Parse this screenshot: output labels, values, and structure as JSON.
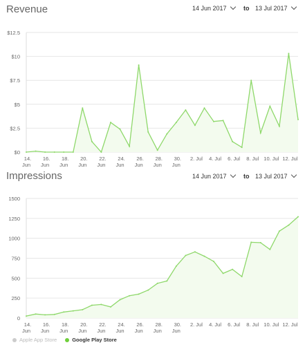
{
  "revenue": {
    "title": "Revenue",
    "from_date": "14 Jun 2017",
    "to_label": "to",
    "to_date": "13 Jul 2017"
  },
  "impressions": {
    "title": "Impressions",
    "from_date": "14 Jun 2017",
    "to_label": "to",
    "to_date": "13 Jul 2017"
  },
  "legend": [
    {
      "label": "Apple App Store",
      "color": "#cccccc",
      "active": false
    },
    {
      "label": "Google Play Store",
      "color": "#6fcf3a",
      "active": true
    }
  ],
  "colors": {
    "line": "#8ed86a",
    "fill": "#f3fbee",
    "grid": "#e6e6e6"
  },
  "chart_data": [
    {
      "type": "area",
      "title": "Revenue",
      "x": [
        "14 Jun",
        "15 Jun",
        "16 Jun",
        "17 Jun",
        "18 Jun",
        "19 Jun",
        "20 Jun",
        "21 Jun",
        "22 Jun",
        "23 Jun",
        "24 Jun",
        "25 Jun",
        "26 Jun",
        "27 Jun",
        "28 Jun",
        "29 Jun",
        "30 Jun",
        "1 Jul",
        "2 Jul",
        "3 Jul",
        "4 Jul",
        "5 Jul",
        "6 Jul",
        "7 Jul",
        "8 Jul",
        "9 Jul",
        "10 Jul",
        "11 Jul",
        "12 Jul",
        "13 Jul"
      ],
      "x_tick_labels": [
        [
          "14.",
          "Jun"
        ],
        [
          "16.",
          "Jun"
        ],
        [
          "18.",
          "Jun"
        ],
        [
          "20.",
          "Jun"
        ],
        [
          "22.",
          "Jun"
        ],
        [
          "24.",
          "Jun"
        ],
        [
          "26.",
          "Jun"
        ],
        [
          "28.",
          "Jun"
        ],
        [
          "30.",
          "Jun"
        ],
        [
          "2. Jul",
          ""
        ],
        [
          "4. Jul",
          ""
        ],
        [
          "6. Jul",
          ""
        ],
        [
          "8. Jul",
          ""
        ],
        [
          "10. Jul",
          ""
        ],
        [
          "12. Jul",
          ""
        ]
      ],
      "series": [
        {
          "name": "Google Play Store",
          "values": [
            0,
            0.1,
            0,
            0,
            0,
            0,
            4.6,
            1.1,
            0,
            3.1,
            2.4,
            0.6,
            9.1,
            2.1,
            0.2,
            1.9,
            3.1,
            4.4,
            2.8,
            4.6,
            3.2,
            3.3,
            1.1,
            0.5,
            7.5,
            2.0,
            4.8,
            2.7,
            10.3,
            3.4
          ]
        }
      ],
      "yticks": [
        "$0",
        "$2.5",
        "$5",
        "$7.5",
        "$10",
        "$12.5"
      ],
      "ylim": [
        0,
        12.5
      ],
      "grid": true
    },
    {
      "type": "area",
      "title": "Impressions",
      "x": [
        "14 Jun",
        "15 Jun",
        "16 Jun",
        "17 Jun",
        "18 Jun",
        "19 Jun",
        "20 Jun",
        "21 Jun",
        "22 Jun",
        "23 Jun",
        "24 Jun",
        "25 Jun",
        "26 Jun",
        "27 Jun",
        "28 Jun",
        "29 Jun",
        "30 Jun",
        "1 Jul",
        "2 Jul",
        "3 Jul",
        "4 Jul",
        "5 Jul",
        "6 Jul",
        "7 Jul",
        "8 Jul",
        "9 Jul",
        "10 Jul",
        "11 Jul",
        "12 Jul",
        "13 Jul"
      ],
      "x_tick_labels": [
        [
          "14.",
          "Jun"
        ],
        [
          "16.",
          "Jun"
        ],
        [
          "18.",
          "Jun"
        ],
        [
          "20.",
          "Jun"
        ],
        [
          "22.",
          "Jun"
        ],
        [
          "24.",
          "Jun"
        ],
        [
          "26.",
          "Jun"
        ],
        [
          "28.",
          "Jun"
        ],
        [
          "30.",
          "Jun"
        ],
        [
          "2. Jul",
          ""
        ],
        [
          "4. Jul",
          ""
        ],
        [
          "6. Jul",
          ""
        ],
        [
          "8. Jul",
          ""
        ],
        [
          "10. Jul",
          ""
        ],
        [
          "12. Jul",
          ""
        ]
      ],
      "series": [
        {
          "name": "Google Play Store",
          "values": [
            25,
            50,
            40,
            45,
            75,
            90,
            105,
            160,
            170,
            140,
            230,
            280,
            300,
            350,
            435,
            465,
            650,
            785,
            830,
            775,
            710,
            560,
            610,
            520,
            950,
            945,
            860,
            1090,
            1165,
            1270
          ]
        }
      ],
      "yticks": [
        "0",
        "250",
        "500",
        "750",
        "1000",
        "1250",
        "1500"
      ],
      "ylim": [
        0,
        1500
      ],
      "grid": true
    }
  ]
}
